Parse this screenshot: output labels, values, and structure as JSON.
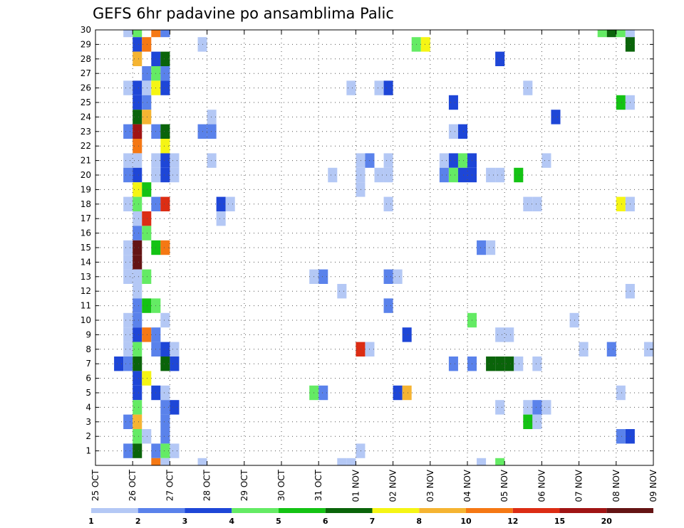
{
  "chart_data": {
    "type": "heatmap",
    "title": "GEFS 6hr padavine po ansamblima Palic",
    "x_tick_labels": [
      "25 OCT",
      "26 OCT",
      "27 OCT",
      "28 OCT",
      "29 OCT",
      "30 OCT",
      "31 OCT",
      "01 NOV",
      "02 NOV",
      "03 NOV",
      "04 NOV",
      "05 NOV",
      "06 NOV",
      "07 NOV",
      "08 NOV",
      "09 NOV"
    ],
    "x_range_days": [
      0,
      15
    ],
    "x_step_days": 0.25,
    "y_tick_labels": [
      "1",
      "2",
      "3",
      "4",
      "5",
      "6",
      "7",
      "8",
      "9",
      "10",
      "11",
      "12",
      "13",
      "14",
      "15",
      "16",
      "17",
      "18",
      "19",
      "20",
      "21",
      "22",
      "23",
      "24",
      "25",
      "26",
      "27",
      "28",
      "29",
      "30"
    ],
    "y_range_members": [
      0,
      30
    ],
    "grid": "dotted",
    "colorbar": {
      "labels": [
        "1",
        "2",
        "3",
        "4",
        "5",
        "6",
        "7",
        "8",
        "10",
        "12",
        "15",
        "20"
      ],
      "colors": [
        "#b4c8f5",
        "#5a82eb",
        "#1e46d7",
        "#64eb64",
        "#14c314",
        "#0a640a",
        "#f5f514",
        "#f5b432",
        "#f57814",
        "#dc2d14",
        "#a01414",
        "#641414"
      ]
    },
    "cells": [
      [
        30,
        0.75,
        1
      ],
      [
        30,
        1,
        4
      ],
      [
        30,
        1.5,
        9
      ],
      [
        30,
        1.75,
        2
      ],
      [
        30,
        13.5,
        4
      ],
      [
        30,
        13.75,
        6
      ],
      [
        30,
        14,
        4
      ],
      [
        30,
        14.25,
        1
      ],
      [
        29,
        1,
        3
      ],
      [
        29,
        1.25,
        9
      ],
      [
        29,
        2.75,
        1
      ],
      [
        29,
        8.5,
        4
      ],
      [
        29,
        8.75,
        7
      ],
      [
        29,
        14.25,
        6
      ],
      [
        28,
        1,
        8
      ],
      [
        28,
        1.5,
        3
      ],
      [
        28,
        1.75,
        6
      ],
      [
        28,
        10.75,
        3
      ],
      [
        27,
        1.25,
        2
      ],
      [
        27,
        1.5,
        4
      ],
      [
        27,
        1.75,
        2
      ],
      [
        26,
        0.75,
        1
      ],
      [
        26,
        1,
        3
      ],
      [
        26,
        1.25,
        1
      ],
      [
        26,
        1.5,
        7
      ],
      [
        26,
        1.75,
        3
      ],
      [
        26,
        6.75,
        1
      ],
      [
        26,
        7.5,
        1
      ],
      [
        26,
        7.75,
        3
      ],
      [
        26,
        11.5,
        1
      ],
      [
        25,
        1,
        3
      ],
      [
        25,
        1.25,
        2
      ],
      [
        25,
        9.5,
        3
      ],
      [
        25,
        14,
        5
      ],
      [
        25,
        14.25,
        1
      ],
      [
        24,
        1,
        6
      ],
      [
        24,
        1.25,
        8
      ],
      [
        24,
        3,
        1
      ],
      [
        24,
        12.25,
        3
      ],
      [
        23,
        0.75,
        2
      ],
      [
        23,
        1,
        11
      ],
      [
        23,
        1.5,
        2
      ],
      [
        23,
        1.75,
        6
      ],
      [
        23,
        2.75,
        2
      ],
      [
        23,
        3,
        2
      ],
      [
        23,
        9.5,
        1
      ],
      [
        23,
        9.75,
        3
      ],
      [
        22,
        1,
        9
      ],
      [
        22,
        1.75,
        7
      ],
      [
        21,
        0.75,
        1
      ],
      [
        21,
        1,
        1
      ],
      [
        21,
        1.5,
        1
      ],
      [
        21,
        1.75,
        3
      ],
      [
        21,
        2,
        1
      ],
      [
        21,
        3,
        1
      ],
      [
        21,
        7,
        1
      ],
      [
        21,
        7.25,
        2
      ],
      [
        21,
        7.75,
        1
      ],
      [
        21,
        9.25,
        1
      ],
      [
        21,
        9.5,
        3
      ],
      [
        21,
        9.75,
        4
      ],
      [
        21,
        10,
        3
      ],
      [
        21,
        12,
        1
      ],
      [
        20,
        0.75,
        2
      ],
      [
        20,
        1,
        3
      ],
      [
        20,
        1.5,
        1
      ],
      [
        20,
        1.75,
        3
      ],
      [
        20,
        2,
        1
      ],
      [
        20,
        6.25,
        1
      ],
      [
        20,
        7,
        1
      ],
      [
        20,
        7.5,
        1
      ],
      [
        20,
        7.75,
        1
      ],
      [
        20,
        9.25,
        2
      ],
      [
        20,
        9.5,
        4
      ],
      [
        20,
        9.75,
        3
      ],
      [
        20,
        10,
        3
      ],
      [
        20,
        10.5,
        1
      ],
      [
        20,
        10.75,
        1
      ],
      [
        20,
        11.25,
        5
      ],
      [
        19,
        1,
        7
      ],
      [
        19,
        1.25,
        5
      ],
      [
        19,
        7,
        1
      ],
      [
        18,
        0.75,
        1
      ],
      [
        18,
        1,
        4
      ],
      [
        18,
        1.5,
        2
      ],
      [
        18,
        1.75,
        10
      ],
      [
        18,
        3.25,
        3
      ],
      [
        18,
        3.5,
        1
      ],
      [
        18,
        7.75,
        1
      ],
      [
        18,
        11.5,
        1
      ],
      [
        18,
        11.75,
        1
      ],
      [
        18,
        14,
        7
      ],
      [
        18,
        14.25,
        1
      ],
      [
        17,
        1,
        1
      ],
      [
        17,
        1.25,
        10
      ],
      [
        17,
        3.25,
        1
      ],
      [
        16,
        1,
        2
      ],
      [
        16,
        1.25,
        4
      ],
      [
        15,
        0.75,
        1
      ],
      [
        15,
        1,
        12
      ],
      [
        15,
        1.5,
        5
      ],
      [
        15,
        1.75,
        9
      ],
      [
        15,
        10.25,
        2
      ],
      [
        15,
        10.5,
        1
      ],
      [
        14,
        0.75,
        1
      ],
      [
        14,
        1,
        12
      ],
      [
        13,
        0.75,
        1
      ],
      [
        13,
        1,
        1
      ],
      [
        13,
        1.25,
        4
      ],
      [
        13,
        5.75,
        1
      ],
      [
        13,
        6,
        2
      ],
      [
        13,
        7.75,
        2
      ],
      [
        13,
        8,
        1
      ],
      [
        12,
        1,
        1
      ],
      [
        12,
        6.5,
        1
      ],
      [
        12,
        14.25,
        1
      ],
      [
        11,
        1,
        2
      ],
      [
        11,
        1.25,
        5
      ],
      [
        11,
        1.5,
        4
      ],
      [
        11,
        7.75,
        2
      ],
      [
        10,
        0.75,
        1
      ],
      [
        10,
        1,
        2
      ],
      [
        10,
        1.75,
        1
      ],
      [
        10,
        10,
        4
      ],
      [
        10,
        12.75,
        1
      ],
      [
        9,
        0.75,
        1
      ],
      [
        9,
        1,
        3
      ],
      [
        9,
        1.25,
        9
      ],
      [
        9,
        1.5,
        2
      ],
      [
        9,
        8.25,
        3
      ],
      [
        9,
        10.75,
        1
      ],
      [
        9,
        11,
        1
      ],
      [
        8,
        0.75,
        1
      ],
      [
        8,
        1,
        4
      ],
      [
        8,
        1.5,
        2
      ],
      [
        8,
        1.75,
        3
      ],
      [
        8,
        2,
        1
      ],
      [
        8,
        7,
        10
      ],
      [
        8,
        7.25,
        1
      ],
      [
        8,
        13,
        1
      ],
      [
        8,
        13.75,
        2
      ],
      [
        8,
        14.75,
        1
      ],
      [
        7,
        0.5,
        3
      ],
      [
        7,
        0.75,
        2
      ],
      [
        7,
        1,
        6
      ],
      [
        7,
        1.75,
        6
      ],
      [
        7,
        2,
        3
      ],
      [
        7,
        9.5,
        2
      ],
      [
        7,
        10,
        2
      ],
      [
        7,
        10.5,
        6
      ],
      [
        7,
        10.75,
        6
      ],
      [
        7,
        11,
        6
      ],
      [
        7,
        11.25,
        1
      ],
      [
        7,
        11.75,
        1
      ],
      [
        6,
        1,
        3
      ],
      [
        6,
        1.25,
        7
      ],
      [
        5,
        1,
        3
      ],
      [
        5,
        1.5,
        3
      ],
      [
        5,
        1.75,
        1
      ],
      [
        5,
        5.75,
        4
      ],
      [
        5,
        6,
        2
      ],
      [
        5,
        8,
        3
      ],
      [
        5,
        8.25,
        8
      ],
      [
        5,
        14,
        1
      ],
      [
        4,
        1,
        4
      ],
      [
        4,
        1.75,
        2
      ],
      [
        4,
        2,
        3
      ],
      [
        4,
        10.75,
        1
      ],
      [
        4,
        11.5,
        1
      ],
      [
        4,
        11.75,
        2
      ],
      [
        4,
        12,
        1
      ],
      [
        3,
        0.75,
        2
      ],
      [
        3,
        1,
        8
      ],
      [
        3,
        1.75,
        2
      ],
      [
        3,
        11.5,
        5
      ],
      [
        3,
        11.75,
        1
      ],
      [
        2,
        1,
        4
      ],
      [
        2,
        1.25,
        1
      ],
      [
        2,
        1.75,
        2
      ],
      [
        2,
        14,
        2
      ],
      [
        2,
        14.25,
        3
      ],
      [
        1,
        0.75,
        2
      ],
      [
        1,
        1,
        6
      ],
      [
        1,
        1.5,
        2
      ],
      [
        1,
        1.75,
        4
      ],
      [
        1,
        2,
        1
      ],
      [
        1,
        7,
        1
      ],
      [
        0,
        1.5,
        9
      ],
      [
        0,
        1.75,
        1
      ],
      [
        0,
        2.75,
        1
      ],
      [
        0,
        6.5,
        1
      ],
      [
        0,
        6.75,
        1
      ],
      [
        0,
        10.25,
        1
      ],
      [
        0,
        10.75,
        4
      ]
    ]
  }
}
